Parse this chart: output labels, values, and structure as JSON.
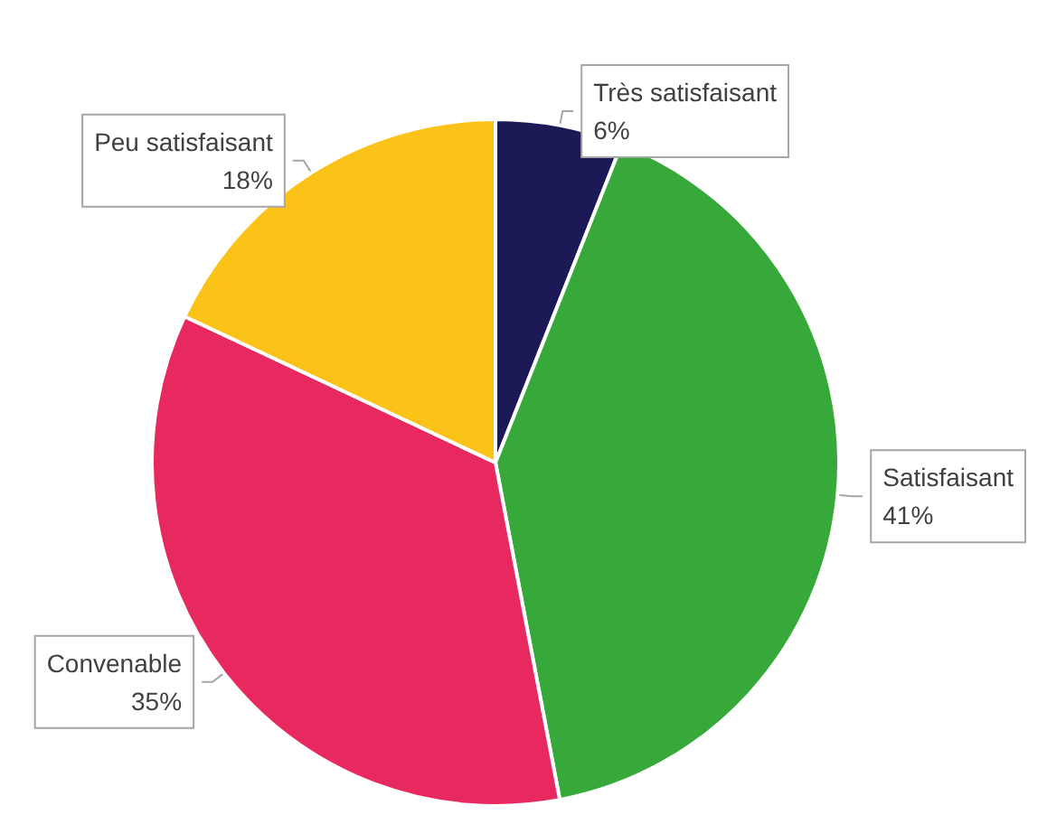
{
  "chart_data": {
    "type": "pie",
    "categories": [
      "Très satisfaisant",
      "Satisfaisant",
      "Convenable",
      "Peu satisfaisant"
    ],
    "values": [
      6,
      41,
      35,
      18
    ],
    "value_labels": [
      "6%",
      "41%",
      "35%",
      "18%"
    ],
    "colors": [
      "#1b1a57",
      "#37a83a",
      "#e8295f",
      "#fbc318"
    ],
    "legend": false
  }
}
